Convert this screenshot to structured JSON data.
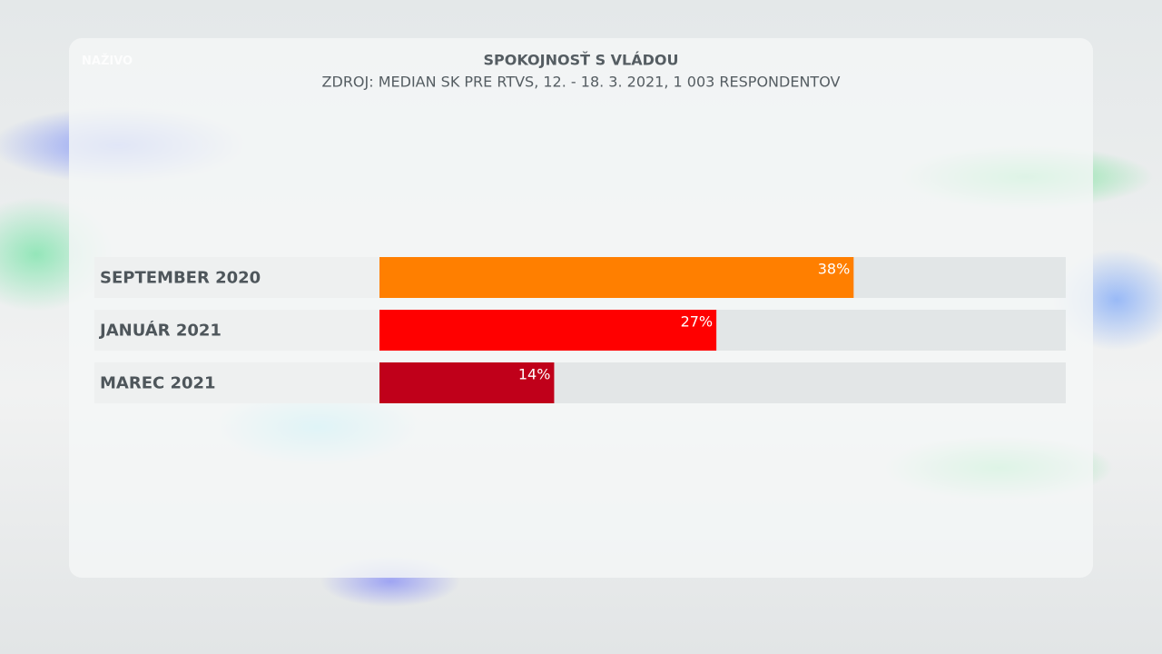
{
  "logo": "NAŽIVO",
  "chart_data": {
    "type": "hbar",
    "title": "SPOKOJNOSŤ S VLÁDOU",
    "subtitle": "ZDROJ: MEDIAN SK PRE RTVS, 12. - 18. 3. 2021, 1 003 RESPONDENTOV",
    "categories": [
      "SEPTEMBER 2020",
      "JANUÁR 2021",
      "MAREC 2021"
    ],
    "values": [
      38,
      27,
      14
    ],
    "value_labels": [
      "38%",
      "27%",
      "14%"
    ],
    "colors": [
      "#ff7f00",
      "#ff0000",
      "#c0001a"
    ],
    "xlim": [
      0,
      55
    ]
  }
}
